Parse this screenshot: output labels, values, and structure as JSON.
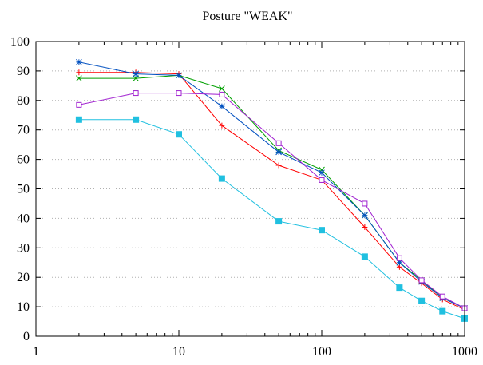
{
  "chart_data": {
    "type": "line",
    "title": "Posture \"WEAK\"",
    "xlabel": "",
    "ylabel": "",
    "xscale": "log",
    "xlim": [
      1,
      1000
    ],
    "ylim": [
      0,
      100
    ],
    "x_ticks": [
      1,
      10,
      100,
      1000
    ],
    "x_tick_labels": [
      "1",
      "10",
      "100",
      "1000"
    ],
    "y_ticks": [
      0,
      10,
      20,
      30,
      40,
      50,
      60,
      70,
      80,
      90,
      100
    ],
    "y_tick_labels": [
      "0",
      "10",
      "20",
      "30",
      "40",
      "50",
      "60",
      "70",
      "80",
      "90",
      "100"
    ],
    "grid": "horizontal-dotted",
    "legend": "none",
    "series": [
      {
        "name": "plus (red)",
        "color": "#ff0000",
        "marker": "plus",
        "points": [
          [
            2,
            89.5
          ],
          [
            5,
            89.5
          ],
          [
            10,
            89
          ],
          [
            20,
            71.5
          ],
          [
            50,
            58
          ],
          [
            100,
            53
          ],
          [
            200,
            37
          ],
          [
            350,
            23.5
          ],
          [
            500,
            18
          ],
          [
            700,
            12.5
          ],
          [
            1000,
            9
          ]
        ]
      },
      {
        "name": "cross (green)",
        "color": "#00a000",
        "marker": "cross",
        "points": [
          [
            2,
            87.5
          ],
          [
            5,
            87.5
          ],
          [
            10,
            88.5
          ],
          [
            20,
            84
          ],
          [
            50,
            63
          ],
          [
            100,
            56.5
          ],
          [
            200,
            41
          ],
          [
            350,
            25
          ],
          [
            500,
            19
          ],
          [
            700,
            13
          ],
          [
            1000,
            9.5
          ]
        ]
      },
      {
        "name": "asterisk (blue)",
        "color": "#0050c0",
        "marker": "asterisk",
        "points": [
          [
            2,
            93
          ],
          [
            5,
            89
          ],
          [
            10,
            88.5
          ],
          [
            20,
            78
          ],
          [
            50,
            62.5
          ],
          [
            100,
            55.5
          ],
          [
            200,
            41
          ],
          [
            350,
            25
          ],
          [
            500,
            18.5
          ],
          [
            700,
            13
          ],
          [
            1000,
            9.5
          ]
        ]
      },
      {
        "name": "open square (magenta)",
        "color": "#a020d0",
        "marker": "square-open",
        "points": [
          [
            2,
            78.5
          ],
          [
            5,
            82.5
          ],
          [
            10,
            82.5
          ],
          [
            20,
            82
          ],
          [
            50,
            65.5
          ],
          [
            100,
            53
          ],
          [
            200,
            45
          ],
          [
            350,
            26.5
          ],
          [
            500,
            19
          ],
          [
            700,
            13.5
          ],
          [
            1000,
            9.5
          ]
        ]
      },
      {
        "name": "filled square (cyan)",
        "color": "#20c0e0",
        "marker": "square-filled",
        "points": [
          [
            2,
            73.5
          ],
          [
            5,
            73.5
          ],
          [
            10,
            68.5
          ],
          [
            20,
            53.5
          ],
          [
            50,
            39
          ],
          [
            100,
            36
          ],
          [
            200,
            27
          ],
          [
            350,
            16.5
          ],
          [
            500,
            12
          ],
          [
            700,
            8.5
          ],
          [
            1000,
            6
          ]
        ]
      }
    ]
  }
}
